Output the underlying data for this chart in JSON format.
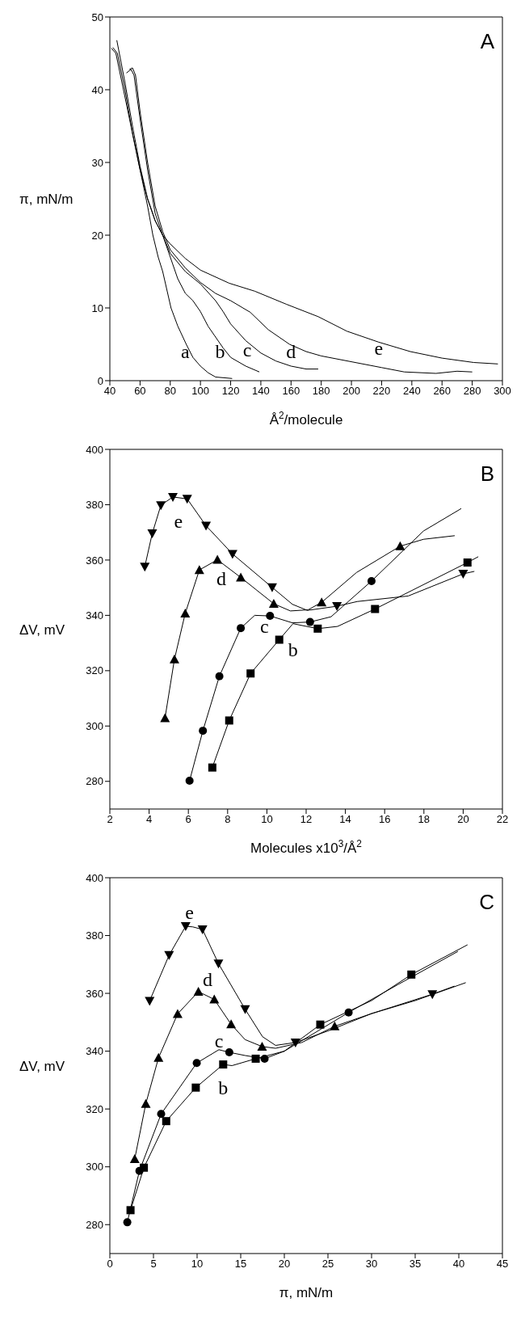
{
  "chart_data": [
    {
      "type": "line",
      "title": "A",
      "xlabel": "Å$^{2}$/molecule",
      "ylabel": "π, mN/m",
      "xlim": [
        40,
        300
      ],
      "ylim": [
        0,
        50
      ],
      "xticks": [
        40,
        60,
        80,
        100,
        120,
        140,
        160,
        180,
        200,
        220,
        240,
        260,
        280,
        300
      ],
      "yticks": [
        0,
        10,
        20,
        30,
        40,
        50
      ],
      "grid": false,
      "legend": false,
      "series": [
        {
          "type": "line",
          "color": "#000000",
          "marker": "none",
          "x": [
            41,
            44,
            50,
            55,
            60,
            65,
            68.5,
            72,
            75,
            80.5,
            85,
            90.6,
            95,
            100,
            105,
            110,
            121
          ],
          "values": [
            45.7,
            45,
            39,
            34,
            29,
            24,
            20,
            17,
            15,
            10,
            7.5,
            5,
            3.2,
            2,
            1.1,
            0.5,
            0.3
          ]
        },
        {
          "type": "line",
          "color": "#000000",
          "marker": "none",
          "x": [
            44.6,
            50,
            55,
            60,
            65,
            70,
            75,
            80,
            85,
            90,
            95,
            100,
            105,
            110,
            115,
            120,
            130,
            139
          ],
          "values": [
            46.8,
            41,
            35,
            29.5,
            25,
            22,
            20,
            17,
            14,
            12,
            11,
            9.5,
            7.5,
            6,
            4.5,
            3.2,
            2,
            1.2
          ]
        },
        {
          "type": "line",
          "color": "#000000",
          "marker": "none",
          "x": [
            51,
            54,
            56,
            60,
            65,
            70,
            75,
            80,
            90,
            100,
            110,
            115,
            120,
            130,
            140,
            150,
            160,
            170,
            178
          ],
          "values": [
            42.3,
            42.8,
            42,
            36,
            29,
            23,
            20,
            17.5,
            15,
            13.3,
            11,
            9.5,
            7.8,
            5.5,
            3.8,
            2.7,
            2,
            1.6,
            1.6
          ]
        },
        {
          "type": "line",
          "color": "#000000",
          "marker": "none",
          "x": [
            53,
            55,
            57,
            60,
            65,
            70,
            75,
            80,
            90,
            100,
            110,
            120,
            133,
            145,
            159,
            170,
            180,
            200,
            220,
            235,
            256,
            270,
            280
          ],
          "values": [
            42.8,
            43,
            42,
            37,
            30,
            24,
            20.5,
            18,
            15.5,
            13.5,
            12,
            11,
            9.4,
            7,
            5,
            4,
            3.4,
            2.6,
            1.8,
            1.2,
            1,
            1.3,
            1.2
          ]
        },
        {
          "type": "line",
          "color": "#000000",
          "marker": "none",
          "x": [
            42,
            45,
            50,
            55,
            60,
            65,
            70,
            75,
            80,
            90,
            100,
            119,
            136,
            157,
            178,
            197,
            218,
            239,
            260,
            281,
            297
          ],
          "values": [
            45.8,
            45,
            40,
            34,
            29,
            25,
            22,
            20,
            18.8,
            16.8,
            15.2,
            13.4,
            12.3,
            10.5,
            8.8,
            6.8,
            5.3,
            4,
            3.1,
            2.5,
            2.3
          ]
        }
      ],
      "annotations": [
        "a",
        "b",
        "c",
        "d",
        "e"
      ]
    },
    {
      "type": "line",
      "title": "B",
      "xlabel": "Molecules x10$^{3}$/Å$^{2}$",
      "ylabel": "ΔV, mV",
      "xlim": [
        2,
        22
      ],
      "ylim": [
        270,
        400
      ],
      "xticks": [
        2,
        4,
        6,
        8,
        10,
        12,
        14,
        16,
        18,
        20,
        22
      ],
      "yticks": [
        280,
        300,
        320,
        340,
        360,
        380,
        400
      ],
      "grid": false,
      "legend": false,
      "series": [
        {
          "type": "line",
          "color": "#000000",
          "marker": "none",
          "x": [
            7.22,
            8.08,
            9.17,
            10.63,
            11.33,
            12.59,
            13.6,
            15.51,
            20.22,
            20.77
          ],
          "values": [
            285,
            302,
            319,
            331.2,
            337,
            335.2,
            336,
            342.3,
            359.1,
            361.2
          ]
        },
        {
          "type": "scatter",
          "color": "#000000",
          "marker": "square",
          "x": [
            7.22,
            8.08,
            9.17,
            10.63,
            12.59,
            15.51,
            20.22
          ],
          "values": [
            285,
            302,
            319,
            331.2,
            335.2,
            342.3,
            359.1
          ]
        },
        {
          "type": "line",
          "color": "#000000",
          "marker": "none",
          "x": [
            6.06,
            6.74,
            7.58,
            8.67,
            9.38,
            10.16,
            11.3,
            12.2,
            13.27,
            15.33,
            17.98,
            19.9
          ],
          "values": [
            280.2,
            298.3,
            318,
            335.4,
            340,
            339.8,
            337.3,
            337.6,
            339.5,
            352.4,
            370.5,
            378.6
          ]
        },
        {
          "type": "scatter",
          "color": "#000000",
          "marker": "circle",
          "x": [
            6.06,
            6.74,
            7.58,
            8.67,
            10.16,
            12.2,
            15.33
          ],
          "values": [
            280.2,
            298.3,
            318,
            335.4,
            339.8,
            337.6,
            352.4
          ]
        },
        {
          "type": "line",
          "color": "#000000",
          "marker": "none",
          "x": [
            4.81,
            5.29,
            5.84,
            6.56,
            7.48,
            8.67,
            10.35,
            11.2,
            12.1,
            12.79,
            14.57,
            16.79,
            17.98,
            19.57
          ],
          "values": [
            302.9,
            324.1,
            340.7,
            356.4,
            360.1,
            353.7,
            344.2,
            341.6,
            342,
            344.7,
            355.5,
            365,
            367.5,
            368.8
          ]
        },
        {
          "type": "scatter",
          "color": "#000000",
          "marker": "triangle",
          "x": [
            4.81,
            5.29,
            5.84,
            6.56,
            7.48,
            8.67,
            10.35,
            12.79,
            16.79
          ],
          "values": [
            302.9,
            324.1,
            340.7,
            356.4,
            360.1,
            353.7,
            344.2,
            344.7,
            365
          ]
        },
        {
          "type": "line",
          "color": "#000000",
          "marker": "none",
          "x": [
            3.78,
            4.16,
            4.6,
            5.21,
            5.94,
            6.9,
            8.25,
            10.27,
            11.3,
            12.06,
            13.57,
            14.6,
            17.2,
            20,
            20.57
          ],
          "values": [
            357.6,
            369.6,
            379.8,
            382.8,
            382.1,
            372.4,
            362.2,
            350.1,
            344,
            341.8,
            343.3,
            345,
            347,
            355,
            355.9
          ]
        },
        {
          "type": "scatter",
          "color": "#000000",
          "marker": "triangle-down",
          "x": [
            3.78,
            4.16,
            4.6,
            5.21,
            5.94,
            6.9,
            8.25,
            10.27,
            13.57,
            20
          ],
          "values": [
            357.6,
            369.6,
            379.8,
            382.8,
            382.1,
            372.4,
            362.2,
            350.1,
            343.3,
            355
          ]
        }
      ],
      "annotations": [
        "b",
        "c",
        "d",
        "e"
      ]
    },
    {
      "type": "line",
      "title": "C",
      "xlabel": "π, mN/m",
      "ylabel": "ΔV, mV",
      "xlim": [
        0,
        45
      ],
      "ylim": [
        270,
        400
      ],
      "xticks": [
        0,
        5,
        10,
        15,
        20,
        25,
        30,
        35,
        40,
        45
      ],
      "yticks": [
        280,
        300,
        320,
        340,
        360,
        380,
        400
      ],
      "grid": false,
      "legend": false,
      "series": [
        {
          "type": "line",
          "color": "#000000",
          "marker": "none",
          "x": [
            2.37,
            3.9,
            6.46,
            9.85,
            12.99,
            14,
            16.72,
            20,
            24.12,
            30,
            34.56,
            41
          ],
          "values": [
            285,
            299.7,
            315.8,
            327.4,
            335.4,
            335,
            337.4,
            340,
            349.2,
            357.5,
            366.5,
            376.8
          ]
        },
        {
          "type": "scatter",
          "color": "#000000",
          "marker": "square",
          "x": [
            2.37,
            3.9,
            6.46,
            9.85,
            12.99,
            16.72,
            24.12,
            34.56
          ],
          "values": [
            285,
            299.7,
            315.8,
            327.4,
            335.4,
            337.4,
            349.2,
            366.5
          ]
        },
        {
          "type": "line",
          "color": "#000000",
          "marker": "none",
          "x": [
            2,
            3.39,
            5.88,
            9.96,
            12.5,
            13.69,
            15.5,
            17.74,
            20,
            27.37,
            33,
            39.9
          ],
          "values": [
            280.8,
            298.6,
            318.3,
            335.9,
            340.5,
            339.6,
            338.5,
            337.4,
            340,
            353.4,
            363,
            374.5
          ]
        },
        {
          "type": "scatter",
          "color": "#000000",
          "marker": "circle",
          "x": [
            2,
            3.39,
            5.88,
            9.96,
            13.69,
            17.74,
            27.37
          ],
          "values": [
            280.8,
            298.6,
            318.3,
            335.9,
            339.6,
            337.4,
            353.4
          ]
        },
        {
          "type": "line",
          "color": "#000000",
          "marker": "none",
          "x": [
            2.85,
            4.12,
            5.58,
            7.77,
            10.15,
            11.97,
            13.9,
            15.5,
            17.45,
            19,
            22,
            25.77,
            30,
            35,
            40.8
          ],
          "values": [
            302.7,
            321.8,
            337.7,
            352.9,
            360.6,
            357.9,
            349.3,
            344,
            341.6,
            341,
            343,
            348.6,
            353,
            357.5,
            363.7
          ]
        },
        {
          "type": "scatter",
          "color": "#000000",
          "marker": "triangle",
          "x": [
            2.85,
            4.12,
            5.58,
            7.77,
            10.15,
            11.97,
            13.9,
            17.45,
            25.77
          ],
          "values": [
            302.7,
            321.8,
            337.7,
            352.9,
            360.6,
            357.9,
            349.3,
            341.6,
            348.6
          ]
        },
        {
          "type": "line",
          "color": "#000000",
          "marker": "none",
          "x": [
            4.56,
            6.79,
            8.69,
            9.5,
            10.62,
            12.45,
            15.51,
            17.5,
            19,
            21.28,
            25,
            30,
            36.97,
            39.5
          ],
          "values": [
            357.4,
            373.2,
            383.2,
            383,
            382.1,
            370.3,
            354.5,
            345,
            342,
            343,
            347,
            353,
            359.7,
            362.5
          ]
        },
        {
          "type": "scatter",
          "color": "#000000",
          "marker": "triangle-down",
          "x": [
            4.56,
            6.79,
            8.69,
            10.62,
            12.45,
            15.51,
            21.28,
            36.97
          ],
          "values": [
            357.4,
            373.2,
            383.2,
            382.1,
            370.3,
            354.5,
            343,
            359.7
          ]
        }
      ],
      "annotations": [
        "b",
        "c",
        "d",
        "e"
      ]
    }
  ]
}
